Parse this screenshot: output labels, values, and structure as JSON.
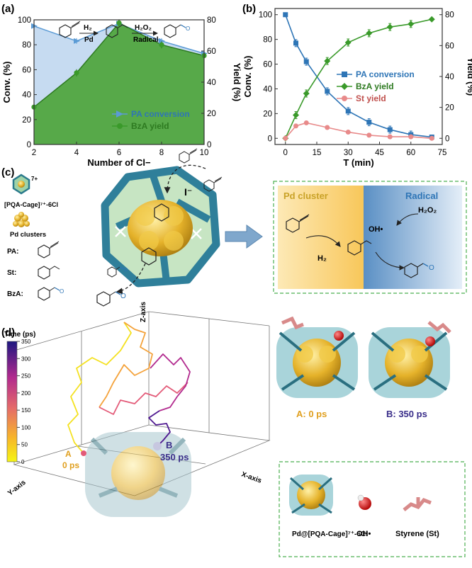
{
  "panels": {
    "a": "(a)",
    "b": "(b)",
    "c": "(c)",
    "d": "(d)"
  },
  "chart_data": [
    {
      "type": "area",
      "panel": "a",
      "xlabel": "Number of Cl−",
      "ylabel": "Conv. (%)",
      "y2label": "Yield (%)",
      "xlim": [
        2,
        10
      ],
      "ylim": [
        0,
        100
      ],
      "y2lim": [
        0,
        80
      ],
      "xticks": [
        2,
        4,
        6,
        8,
        10
      ],
      "yticks": [
        0,
        20,
        40,
        60,
        80,
        100
      ],
      "y2ticks": [
        0,
        20,
        40,
        60,
        80
      ],
      "x": [
        2,
        4,
        6,
        8,
        10
      ],
      "legend_position": "lower-right",
      "series": [
        {
          "name": "PA conversion",
          "axis": "left",
          "color": "#5b9bd5",
          "values": [
            95,
            83,
            97,
            83,
            73
          ]
        },
        {
          "name": "BzA yield",
          "axis": "right",
          "color": "#3a9a2a",
          "values": [
            24,
            46,
            78,
            64,
            57
          ]
        }
      ],
      "scheme": {
        "h2": "H₂",
        "pd": "Pd",
        "h2o2": "H₂O₂",
        "radical": "Radical"
      }
    },
    {
      "type": "line",
      "panel": "b",
      "xlabel": "T (min)",
      "ylabel": "Conv. (%)",
      "y2label": "Yield (%)",
      "xlim": [
        -5,
        75
      ],
      "ylim": [
        -5,
        105
      ],
      "y2lim": [
        -4,
        84
      ],
      "xticks": [
        0,
        15,
        30,
        45,
        60,
        75
      ],
      "yticks": [
        0,
        20,
        40,
        60,
        80,
        100
      ],
      "y2ticks": [
        0,
        20,
        40,
        60,
        80
      ],
      "legend_position": "center-right",
      "series": [
        {
          "name": "PA conversion",
          "axis": "left",
          "color": "#2e75b6",
          "x": [
            0,
            5,
            10,
            20,
            30,
            40,
            50,
            60,
            70
          ],
          "values": [
            100,
            77,
            62,
            38,
            22,
            13,
            7,
            3,
            1
          ]
        },
        {
          "name": "BzA yield",
          "axis": "right",
          "color": "#3a9a2a",
          "x": [
            0,
            5,
            10,
            20,
            30,
            40,
            50,
            60,
            70
          ],
          "values": [
            0,
            15,
            29,
            50,
            62,
            68,
            72,
            74,
            77
          ]
        },
        {
          "name": "St yield",
          "axis": "right",
          "color": "#e88a8a",
          "x": [
            0,
            5,
            10,
            20,
            30,
            40,
            50,
            60,
            70
          ],
          "values": [
            0,
            8,
            10,
            7,
            4,
            2,
            1,
            1,
            0
          ]
        }
      ]
    }
  ],
  "panel_c": {
    "cage_label": "[PQA-Cage]⁷⁺-6Cl",
    "cage_charge": "7+",
    "iodide": "I⁻",
    "pd_label": "Pd clusters",
    "pa_label": "PA:",
    "st_label": "St:",
    "bza_label": "BzA:",
    "pd_cluster_title": "Pd cluster",
    "radical_title": "Radical",
    "h2o2": "H₂O₂",
    "oh": "OH•",
    "h2": "H₂"
  },
  "panel_d": {
    "colorbar_title": "Time (ps)",
    "colorbar_ticks": [
      0,
      50,
      100,
      150,
      200,
      250,
      300,
      350
    ],
    "zaxis": "Z-axis",
    "yaxis": "Y-axis",
    "xaxis": "X-axis",
    "point_a": "A",
    "point_a_time": "0 ps",
    "point_b": "B",
    "point_b_time": "350 ps",
    "snap_a": "A: 0 ps",
    "snap_b": "B: 350 ps",
    "legend_cage": "Pd@[PQA-Cage]⁷⁺-6Cl",
    "legend_oh": "OH•",
    "legend_st": "Styrene (St)"
  }
}
